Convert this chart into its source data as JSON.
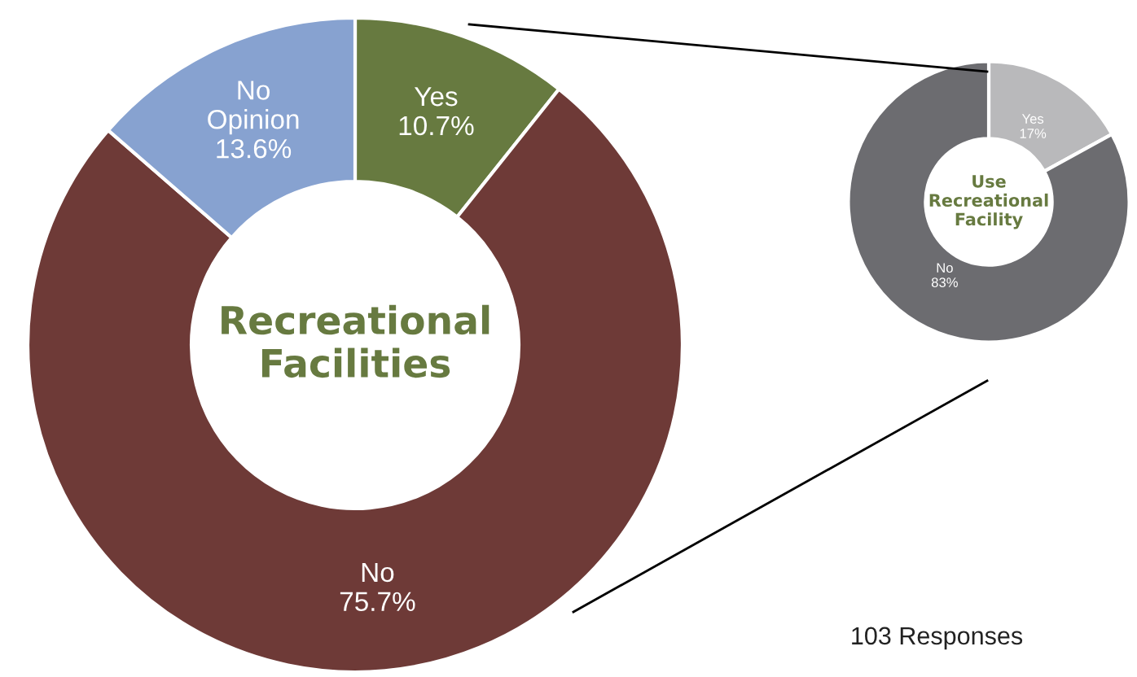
{
  "chart_data": [
    {
      "type": "donut",
      "title": "Recreational Facilities",
      "categories": [
        "Yes",
        "No",
        "No Opinion"
      ],
      "values": [
        10.7,
        75.7,
        13.6
      ],
      "colors": [
        "#677a40",
        "#6e3a37",
        "#87a2d0"
      ],
      "value_labels": [
        "10.7%",
        "75.7%",
        "13.6%"
      ]
    },
    {
      "type": "donut",
      "title": "Use Recreational Facility",
      "categories": [
        "Yes",
        "No"
      ],
      "values": [
        17,
        83
      ],
      "colors": [
        "#b9b9bb",
        "#6c6c70"
      ],
      "value_labels": [
        "17%",
        "83%"
      ],
      "annotations": [
        "103 Responses"
      ]
    }
  ]
}
